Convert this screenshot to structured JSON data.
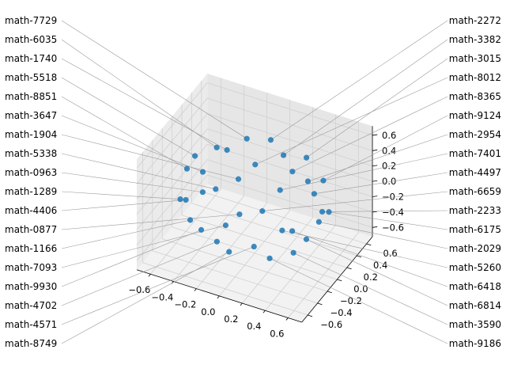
{
  "chart_data": {
    "type": "scatter",
    "projection": "3d",
    "title": "",
    "xlabel": "",
    "ylabel": "",
    "zlabel": "",
    "xlim": [
      -0.72,
      0.72
    ],
    "ylim": [
      -0.72,
      0.72
    ],
    "zlim": [
      -0.72,
      0.72
    ],
    "x_ticks": [
      "−0.6",
      "−0.4",
      "−0.2",
      "0.0",
      "0.2",
      "0.4",
      "0.6"
    ],
    "y_ticks": [
      "−0.6",
      "−0.4",
      "−0.2",
      "0.0",
      "0.2",
      "0.4",
      "0.6"
    ],
    "z_ticks": [
      "−0.6",
      "−0.4",
      "−0.2",
      "0.0",
      "0.2",
      "0.4",
      "0.6"
    ],
    "tick_values": [
      -0.6,
      -0.4,
      -0.2,
      0.0,
      0.2,
      0.4,
      0.6
    ],
    "grid": true,
    "marker_color": "#1f77b4",
    "points": [
      {
        "x": 0.33,
        "y": 0,
        "z": 0.5,
        "label": "math-8365"
      },
      {
        "x": 0,
        "y": 0.33,
        "z": 0.5,
        "label": "math-2272"
      },
      {
        "x": -0.33,
        "y": 0,
        "z": 0.5,
        "label": "math-6035"
      },
      {
        "x": 0,
        "y": -0.33,
        "z": 0.5,
        "label": "math-1904"
      },
      {
        "x": 0.52,
        "y": 0,
        "z": 0.3,
        "label": "math-4497"
      },
      {
        "x": 0.26,
        "y": 0.45,
        "z": 0.3,
        "label": "math-3015"
      },
      {
        "x": -0.26,
        "y": 0.45,
        "z": 0.3,
        "label": "math-7729"
      },
      {
        "x": -0.52,
        "y": 0,
        "z": 0.3,
        "label": "math-5518"
      },
      {
        "x": -0.26,
        "y": -0.45,
        "z": 0.3,
        "label": "math-0963"
      },
      {
        "x": 0.26,
        "y": -0.45,
        "z": 0.3,
        "label": "math-6659"
      },
      {
        "x": 0.59,
        "y": 0,
        "z": 0.1,
        "label": "math-2233"
      },
      {
        "x": 0.42,
        "y": 0.42,
        "z": 0.1,
        "label": "math-9124"
      },
      {
        "x": 0,
        "y": 0.59,
        "z": 0.1,
        "label": "math-3382"
      },
      {
        "x": -0.42,
        "y": 0.42,
        "z": 0.1,
        "label": "math-1740"
      },
      {
        "x": -0.59,
        "y": 0,
        "z": 0.1,
        "label": "math-8851"
      },
      {
        "x": -0.42,
        "y": -0.42,
        "z": 0.1,
        "label": "math-4406"
      },
      {
        "x": 0,
        "y": -0.59,
        "z": 0.1,
        "label": "math-7093"
      },
      {
        "x": 0.42,
        "y": -0.42,
        "z": 0.1,
        "label": "math-5260"
      },
      {
        "x": 0.55,
        "y": 0.23,
        "z": -0.1,
        "label": "math-6175"
      },
      {
        "x": 0.23,
        "y": 0.55,
        "z": -0.1,
        "label": "math-2954"
      },
      {
        "x": -0.23,
        "y": 0.55,
        "z": -0.1,
        "label": "math-8012"
      },
      {
        "x": -0.55,
        "y": 0.23,
        "z": -0.1,
        "label": "math-3647"
      },
      {
        "x": -0.55,
        "y": -0.23,
        "z": -0.1,
        "label": "math-1289"
      },
      {
        "x": -0.23,
        "y": -0.55,
        "z": -0.1,
        "label": "math-9930"
      },
      {
        "x": 0.23,
        "y": -0.55,
        "z": -0.1,
        "label": "math-4571"
      },
      {
        "x": 0.55,
        "y": -0.23,
        "z": -0.1,
        "label": "math-6814"
      },
      {
        "x": 0.45,
        "y": 0.26,
        "z": -0.3,
        "label": "math-2029"
      },
      {
        "x": 0,
        "y": 0.52,
        "z": -0.3,
        "label": "math-7401"
      },
      {
        "x": -0.45,
        "y": 0.26,
        "z": -0.3,
        "label": "math-5338"
      },
      {
        "x": -0.45,
        "y": -0.26,
        "z": -0.3,
        "label": "math-1166"
      },
      {
        "x": 0,
        "y": -0.52,
        "z": -0.3,
        "label": "math-8749"
      },
      {
        "x": 0.45,
        "y": -0.26,
        "z": -0.3,
        "label": "math-3590"
      },
      {
        "x": 0.23,
        "y": 0.23,
        "z": -0.5,
        "label": "math-6418"
      },
      {
        "x": -0.23,
        "y": 0.23,
        "z": -0.5,
        "label": "math-0877"
      },
      {
        "x": -0.23,
        "y": -0.23,
        "z": -0.5,
        "label": "math-4702"
      },
      {
        "x": 0.23,
        "y": -0.23,
        "z": -0.5,
        "label": "math-9186"
      }
    ]
  }
}
